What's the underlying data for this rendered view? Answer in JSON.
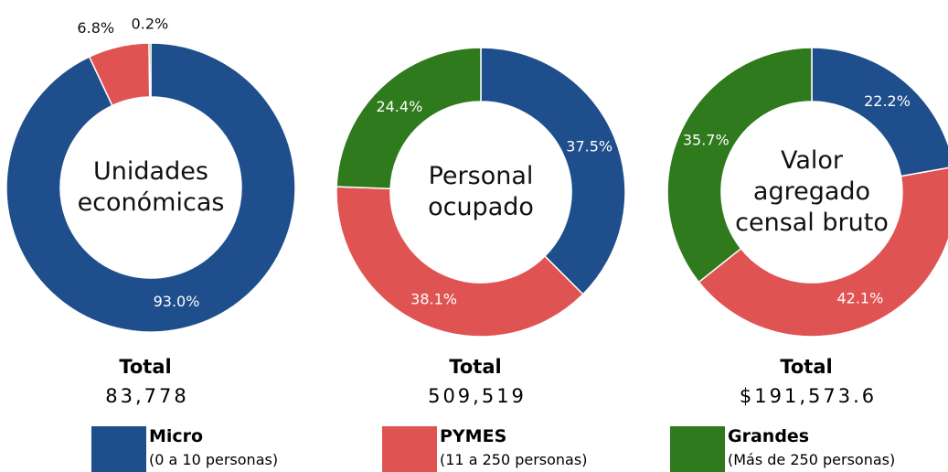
{
  "chart_data": [
    {
      "type": "pie",
      "title": "Unidades económicas",
      "values": [
        93.0,
        6.8,
        0.2
      ],
      "value_labels": [
        "93.0%",
        "6.8%",
        "0.2%"
      ],
      "total_label": "Total",
      "total": "83,778"
    },
    {
      "type": "pie",
      "title": "Personal ocupado",
      "values": [
        37.5,
        38.1,
        24.4
      ],
      "value_labels": [
        "37.5%",
        "38.1%",
        "24.4%"
      ],
      "total_label": "Total",
      "total": "509,519"
    },
    {
      "type": "pie",
      "title": "Valor agregado censal bruto",
      "values": [
        22.2,
        42.1,
        35.7
      ],
      "value_labels": [
        "22.2%",
        "42.1%",
        "35.7%"
      ],
      "total_label": "Total",
      "total": "$191,573.6"
    }
  ],
  "legend": [
    {
      "name": "Micro",
      "note": "(0 a 10 personas)",
      "color": "#1f4e8c"
    },
    {
      "name": "PYMES",
      "note": "(11  a 250 personas)",
      "color": "#e05353"
    },
    {
      "name": "Grandes",
      "note": "(Más de 250 personas)",
      "color": "#2e7a1c"
    }
  ]
}
